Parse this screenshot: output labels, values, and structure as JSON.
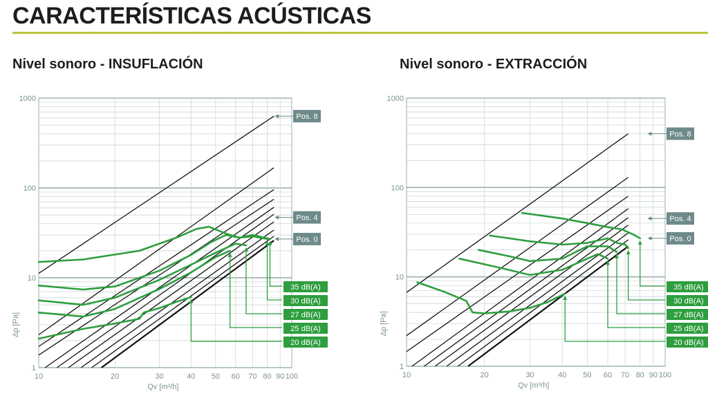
{
  "page": {
    "title": "CARACTERÍSTICAS ACÚSTICAS"
  },
  "colors": {
    "accent": "#b9c73a",
    "curve": "#2e9e3e",
    "badge_green": "#2e9e3e",
    "badge_gray": "#6e8a8a",
    "grid": "#c8d2d2",
    "axis_text": "#7a9292"
  },
  "chart_data": [
    {
      "type": "line",
      "title": "Nivel sonoro - INSUFLACIÓN",
      "xlabel": "Qv [m³/h]",
      "ylabel": "Δp [Pa]",
      "xscale": "log",
      "yscale": "log",
      "xlim": [
        10,
        100
      ],
      "ylim": [
        1,
        1000
      ],
      "x_ticks": [
        "10",
        "20",
        "30",
        "40",
        "50",
        "60",
        "70",
        "80",
        "90",
        "100"
      ],
      "y_ticks": [
        "1",
        "10",
        "100",
        "1000"
      ],
      "grid": true,
      "position_labels": [
        {
          "label": "Pos. 8",
          "x": 85,
          "y": 630
        },
        {
          "label": "Pos. 4",
          "x": 85,
          "y": 47
        },
        {
          "label": "Pos. 0",
          "x": 85,
          "y": 27
        }
      ],
      "position_lines": [
        {
          "x": [
            10,
            85
          ],
          "y": [
            11.2,
            630
          ]
        },
        {
          "x": [
            10,
            85
          ],
          "y": [
            2.32,
            168
          ]
        },
        {
          "x": [
            10,
            85
          ],
          "y": [
            1.72,
            96
          ]
        },
        {
          "x": [
            10,
            85
          ],
          "y": [
            1.38,
            75
          ]
        },
        {
          "x": [
            10.6,
            85
          ],
          "y": [
            1.0,
            61
          ]
        },
        {
          "x": [
            11.8,
            85
          ],
          "y": [
            1.0,
            51
          ]
        },
        {
          "x": [
            13.1,
            85
          ],
          "y": [
            1.0,
            42
          ]
        },
        {
          "x": [
            14.7,
            85
          ],
          "y": [
            1.0,
            34
          ]
        },
        {
          "x": [
            16.2,
            85
          ],
          "y": [
            1.0,
            29
          ]
        },
        {
          "x": [
            17.7,
            85
          ],
          "y": [
            1.0,
            26
          ]
        }
      ],
      "series": [
        {
          "name": "35 dB(A)",
          "x": [
            10,
            15,
            25,
            35,
            42,
            47,
            55,
            62,
            70,
            82
          ],
          "y": [
            15,
            16,
            20,
            28,
            35,
            37,
            31,
            28,
            30,
            27
          ]
        },
        {
          "name": "30 dB(A)",
          "x": [
            10,
            15,
            20,
            30,
            40,
            48,
            55,
            62,
            70,
            80
          ],
          "y": [
            8.2,
            7.4,
            8.0,
            12,
            18,
            25,
            30,
            28,
            29,
            27
          ]
        },
        {
          "name": "27 dB(A)",
          "x": [
            10,
            15,
            20,
            30,
            40,
            50,
            60,
            66
          ],
          "y": [
            5.6,
            5.0,
            6.0,
            9.5,
            14,
            19,
            24,
            23
          ]
        },
        {
          "name": "25 dB(A)",
          "x": [
            10,
            15,
            20,
            30,
            40,
            50,
            57
          ],
          "y": [
            4.1,
            3.7,
            4.5,
            7.5,
            11.5,
            17,
            20
          ]
        },
        {
          "name": "20 dB(A)",
          "x": [
            10,
            15,
            20,
            25,
            26,
            30,
            35,
            40
          ],
          "y": [
            2.1,
            2.7,
            3.1,
            3.5,
            4.1,
            4.6,
            5.4,
            6.1
          ]
        }
      ]
    },
    {
      "type": "line",
      "title": "Nivel sonoro - EXTRACCIÓN",
      "xlabel": "Qv [m³/h]",
      "ylabel": "Δp [Pa]",
      "xscale": "log",
      "yscale": "log",
      "xlim": [
        10,
        100
      ],
      "ylim": [
        1,
        1000
      ],
      "x_ticks": [
        "10",
        "20",
        "30",
        "40",
        "50",
        "60",
        "70",
        "80",
        "90",
        "100"
      ],
      "y_ticks": [
        "1",
        "10",
        "100",
        "1000"
      ],
      "grid": true,
      "position_labels": [
        {
          "label": "Pos. 8",
          "x": 85,
          "y": 400
        },
        {
          "label": "Pos. 4",
          "x": 85,
          "y": 45
        },
        {
          "label": "Pos. 0",
          "x": 85,
          "y": 27
        }
      ],
      "position_lines": [
        {
          "x": [
            10,
            72
          ],
          "y": [
            6.7,
            400
          ]
        },
        {
          "x": [
            10,
            72
          ],
          "y": [
            2.2,
            130
          ]
        },
        {
          "x": [
            10,
            72
          ],
          "y": [
            1.46,
            80
          ]
        },
        {
          "x": [
            10.5,
            72
          ],
          "y": [
            1.0,
            58
          ]
        },
        {
          "x": [
            11.7,
            72
          ],
          "y": [
            1.0,
            46
          ]
        },
        {
          "x": [
            12.9,
            72
          ],
          "y": [
            1.0,
            38
          ]
        },
        {
          "x": [
            14.3,
            72
          ],
          "y": [
            1.0,
            31
          ]
        },
        {
          "x": [
            15.8,
            72
          ],
          "y": [
            1.0,
            26
          ]
        },
        {
          "x": [
            17.3,
            72
          ],
          "y": [
            1.0,
            22
          ]
        }
      ],
      "series": [
        {
          "name": "35 dB(A)",
          "x": [
            28,
            40,
            50,
            60,
            68,
            75,
            80
          ],
          "y": [
            52,
            45,
            40,
            36,
            34,
            30,
            27
          ]
        },
        {
          "name": "30 dB(A)",
          "x": [
            21,
            30,
            40,
            50,
            60,
            65,
            70,
            72
          ],
          "y": [
            29,
            25,
            23,
            24,
            27,
            24,
            23,
            21
          ]
        },
        {
          "name": "27 dB(A)",
          "x": [
            19,
            25,
            30,
            40,
            50,
            60,
            65
          ],
          "y": [
            20,
            17,
            15,
            16,
            22,
            22,
            19
          ]
        },
        {
          "name": "25 dB(A)",
          "x": [
            16,
            22,
            30,
            40,
            50,
            55,
            60
          ],
          "y": [
            16,
            13,
            10.5,
            12,
            16,
            18,
            16
          ]
        },
        {
          "name": "20 dB(A)",
          "x": [
            11,
            14,
            17,
            18,
            20,
            25,
            30,
            35,
            41
          ],
          "y": [
            8.7,
            6.8,
            5.4,
            4,
            3.9,
            4.1,
            4.5,
            5.2,
            6.5
          ]
        }
      ]
    }
  ]
}
